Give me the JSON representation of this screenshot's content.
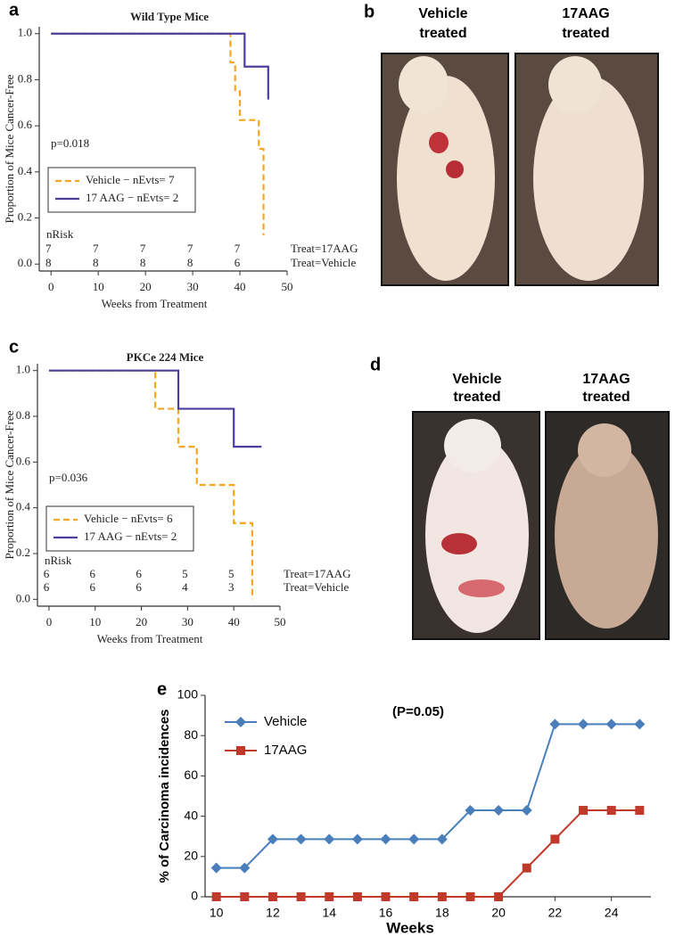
{
  "panels": [
    "a",
    "b",
    "c",
    "d",
    "e"
  ],
  "photos": [
    {
      "labels": [
        [
          "Vehicle",
          "treated"
        ],
        [
          "17AAG",
          "treated"
        ]
      ]
    },
    {
      "labels": [
        [
          "Vehicle",
          "treated"
        ],
        [
          "17AAG",
          "treated"
        ]
      ]
    }
  ],
  "chart_data": [
    {
      "type": "step",
      "title": "Wild Type Mice",
      "ylabel": "Proportion of Mice Cancer-Free",
      "xlabel": "Weeks from Treatment",
      "annotation": "p=0.018",
      "xlim": [
        -2.5,
        50
      ],
      "ylim": [
        -0.03,
        1.03
      ],
      "xticks": [
        0,
        10,
        20,
        30,
        40,
        50
      ],
      "yticks": [
        {
          "value": 0,
          "label": "0.0"
        },
        0.2,
        0.4,
        0.6,
        0.8,
        {
          "value": 1,
          "label": "1.0"
        }
      ],
      "series": [
        {
          "name": "Vehicle − nEvts= 7",
          "color": "#f5a623",
          "linestyle": "dashed",
          "x": [
            0,
            38,
            39,
            40,
            44,
            45
          ],
          "values": [
            1,
            0.875,
            0.75,
            0.625,
            0.5,
            0.125
          ]
        },
        {
          "name": "17 AAG − nEvts= 2",
          "color": "#4b3f9e",
          "linestyle": "solid",
          "x": [
            0,
            41,
            46
          ],
          "values": [
            1,
            0.857,
            0.714
          ]
        }
      ],
      "risk_table": {
        "label": "nRisk",
        "rows": [
          {
            "name": "Treat=17AAG",
            "values": [
              7,
              7,
              7,
              7,
              7
            ]
          },
          {
            "name": "Treat=Vehicle",
            "values": [
              8,
              8,
              8,
              8,
              6
            ]
          }
        ]
      }
    },
    {
      "type": "step",
      "title": "PKCe 224 Mice",
      "ylabel": "Proportion of Mice Cancer-Free",
      "xlabel": "Weeks from Treatment",
      "annotation": "p=0.036",
      "xlim": [
        -2.5,
        50
      ],
      "ylim": [
        -0.03,
        1.03
      ],
      "xticks": [
        0,
        10,
        20,
        30,
        40,
        50
      ],
      "yticks": [
        {
          "value": 0,
          "label": "0.0"
        },
        0.2,
        0.4,
        0.6,
        0.8,
        {
          "value": 1,
          "label": "1.0"
        }
      ],
      "series": [
        {
          "name": "Vehicle − nEvts= 6",
          "color": "#f5a623",
          "linestyle": "dashed",
          "x": [
            0,
            23,
            28,
            32,
            40,
            44
          ],
          "values": [
            1,
            0.833,
            0.667,
            0.5,
            0.333,
            0
          ]
        },
        {
          "name": "17 AAG − nEvts= 2",
          "color": "#4b3f9e",
          "linestyle": "solid",
          "x": [
            0,
            28,
            40,
            46
          ],
          "values": [
            1,
            0.833,
            0.667,
            0.667
          ]
        }
      ],
      "risk_table": {
        "label": "nRisk",
        "rows": [
          {
            "name": "Treat=17AAG",
            "values": [
              6,
              6,
              6,
              5,
              5
            ]
          },
          {
            "name": "Treat=Vehicle",
            "values": [
              6,
              6,
              6,
              4,
              3
            ]
          }
        ]
      }
    },
    {
      "type": "line",
      "ylabel": "% of Carcinoma incidences",
      "xlabel": "Weeks",
      "annotation": "(P=0.05)",
      "xlim": [
        9.6,
        25.4
      ],
      "ylim": [
        0,
        100
      ],
      "xticks": [
        10,
        12,
        14,
        16,
        18,
        20,
        22,
        24
      ],
      "yticks": [
        0,
        20,
        40,
        60,
        80,
        100
      ],
      "x": [
        10,
        11,
        12,
        13,
        14,
        15,
        16,
        17,
        18,
        19,
        20,
        21,
        22,
        23,
        24,
        25
      ],
      "series": [
        {
          "name": "Vehicle",
          "color": "#4a7ebb",
          "marker": "diamond",
          "values": [
            14.3,
            14.3,
            28.6,
            28.6,
            28.6,
            28.6,
            28.6,
            28.6,
            28.6,
            42.9,
            42.9,
            42.9,
            85.7,
            85.7,
            85.7,
            85.7
          ]
        },
        {
          "name": "17AAG",
          "color": "#c0392b",
          "marker": "square",
          "values": [
            0,
            0,
            0,
            0,
            0,
            0,
            0,
            0,
            0,
            0,
            0,
            14.3,
            28.6,
            42.9,
            42.9,
            42.9
          ]
        }
      ]
    }
  ]
}
